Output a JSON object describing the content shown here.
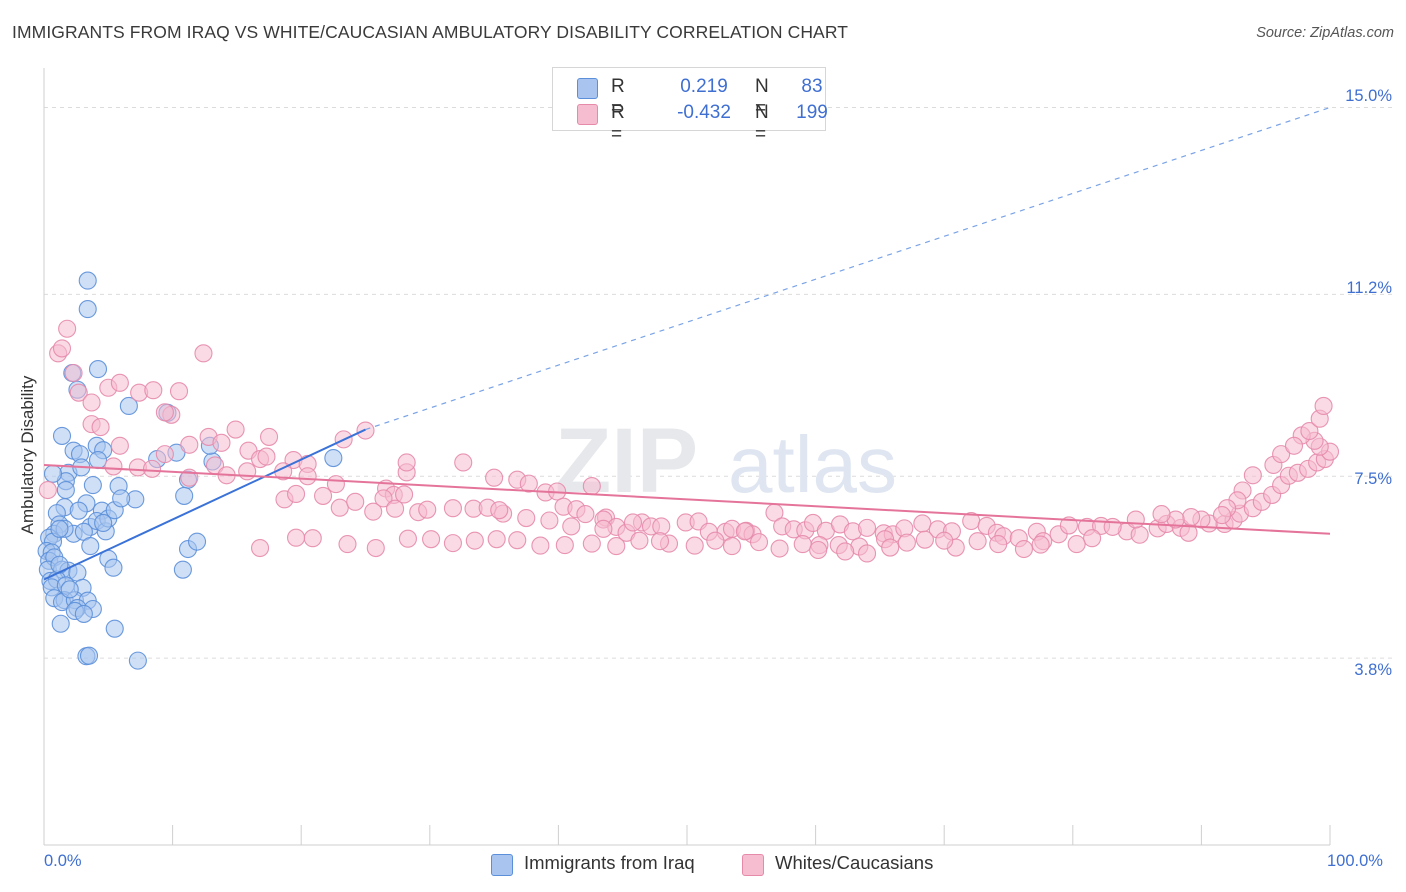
{
  "title": "IMMIGRANTS FROM IRAQ VS WHITE/CAUCASIAN AMBULATORY DISABILITY CORRELATION CHART",
  "source": "Source: ZipAtlas.com",
  "watermark": {
    "part1": "ZIP",
    "part2": "atlas"
  },
  "legend": {
    "rows": [
      {
        "r_label": "R =",
        "r_value": "0.219",
        "n_label": "N =",
        "n_value": "83",
        "color": "#a8c4ef",
        "border": "#5b8fd9"
      },
      {
        "r_label": "R =",
        "r_value": "-0.432",
        "n_label": "N =",
        "n_value": "199",
        "color": "#f6bcd0",
        "border": "#e58aab"
      }
    ]
  },
  "bottom_legend": [
    {
      "label": "Immigrants from Iraq",
      "color": "#a8c4ef",
      "border": "#5b8fd9"
    },
    {
      "label": "Whites/Caucasians",
      "color": "#f6bcd0",
      "border": "#e58aab"
    }
  ],
  "axes": {
    "y_title": "Ambulatory Disability",
    "y_ticks": [
      "15.0%",
      "11.2%",
      "7.5%",
      "3.8%"
    ],
    "x_ticks": [
      "0.0%",
      "100.0%"
    ]
  },
  "chart_data": {
    "type": "scatter",
    "title": "IMMIGRANTS FROM IRAQ VS WHITE/CAUCASIAN AMBULATORY DISABILITY CORRELATION CHART",
    "xlabel": "",
    "ylabel": "Ambulatory Disability",
    "xlim": [
      0,
      100
    ],
    "ylim": [
      0,
      15.6
    ],
    "y_ticks": [
      3.8,
      7.5,
      11.2,
      15.0
    ],
    "grid": true,
    "legend_position": "top-center",
    "series": [
      {
        "name": "Immigrants from Iraq",
        "color": "#5b8fd9",
        "fill": "#a8c4ef",
        "trend": {
          "x": [
            0,
            25
          ],
          "y": [
            5.4,
            8.45
          ],
          "extrapolated_to": [
            100,
            15.0
          ]
        },
        "points": [
          [
            3.4,
            11.48
          ],
          [
            3.4,
            10.9
          ],
          [
            4.2,
            9.68
          ],
          [
            2.2,
            9.6
          ],
          [
            2.6,
            9.26
          ],
          [
            6.6,
            8.93
          ],
          [
            1.4,
            8.32
          ],
          [
            9.6,
            8.79
          ],
          [
            2.3,
            8.02
          ],
          [
            2.8,
            7.95
          ],
          [
            4.1,
            8.12
          ],
          [
            4.6,
            8.03
          ],
          [
            1.9,
            7.57
          ],
          [
            3.8,
            7.32
          ],
          [
            1.7,
            7.4
          ],
          [
            1.7,
            7.22
          ],
          [
            2.9,
            7.68
          ],
          [
            0.7,
            7.55
          ],
          [
            5.8,
            7.3
          ],
          [
            7.1,
            7.03
          ],
          [
            3.3,
            6.95
          ],
          [
            4.5,
            6.8
          ],
          [
            10.3,
            7.98
          ],
          [
            1.6,
            6.87
          ],
          [
            2.7,
            6.8
          ],
          [
            3.6,
            6.47
          ],
          [
            4.1,
            6.59
          ],
          [
            1.0,
            6.75
          ],
          [
            1.2,
            6.52
          ],
          [
            2.3,
            6.33
          ],
          [
            0.8,
            6.33
          ],
          [
            0.4,
            6.25
          ],
          [
            0.7,
            6.17
          ],
          [
            1.6,
            6.43
          ],
          [
            3.1,
            6.37
          ],
          [
            4.8,
            6.38
          ],
          [
            1.2,
            6.43
          ],
          [
            0.2,
            5.98
          ],
          [
            0.6,
            5.95
          ],
          [
            0.4,
            5.78
          ],
          [
            0.8,
            5.85
          ],
          [
            0.3,
            5.6
          ],
          [
            1.4,
            5.6
          ],
          [
            1.9,
            5.58
          ],
          [
            2.6,
            5.54
          ],
          [
            3.6,
            6.08
          ],
          [
            5.0,
            5.82
          ],
          [
            5.4,
            5.64
          ],
          [
            0.5,
            5.37
          ],
          [
            1.0,
            5.4
          ],
          [
            0.6,
            5.24
          ],
          [
            1.7,
            5.28
          ],
          [
            3.0,
            5.23
          ],
          [
            0.8,
            5.02
          ],
          [
            1.6,
            4.98
          ],
          [
            1.4,
            4.94
          ],
          [
            2.4,
            4.98
          ],
          [
            3.4,
            4.97
          ],
          [
            2.6,
            4.82
          ],
          [
            3.8,
            4.8
          ],
          [
            2.4,
            4.76
          ],
          [
            3.1,
            4.7
          ],
          [
            1.3,
            4.5
          ],
          [
            5.5,
            4.4
          ],
          [
            3.3,
            3.84
          ],
          [
            3.5,
            3.85
          ],
          [
            7.3,
            3.75
          ],
          [
            11.2,
            7.43
          ],
          [
            10.9,
            7.1
          ],
          [
            13.1,
            7.8
          ],
          [
            12.9,
            8.12
          ],
          [
            11.2,
            6.02
          ],
          [
            11.9,
            6.17
          ],
          [
            10.8,
            5.6
          ],
          [
            22.5,
            7.87
          ],
          [
            5.0,
            6.64
          ],
          [
            5.5,
            6.81
          ],
          [
            6.0,
            7.05
          ],
          [
            8.8,
            7.85
          ],
          [
            4.2,
            7.83
          ],
          [
            4.6,
            6.55
          ],
          [
            2.0,
            5.2
          ],
          [
            1.2,
            5.7
          ]
        ]
      },
      {
        "name": "Whites/Caucasians",
        "color": "#e58aab",
        "fill": "#f6bcd0",
        "trend": {
          "x": [
            0,
            100
          ],
          "y": [
            7.73,
            6.33
          ]
        },
        "points": [
          [
            1.8,
            10.5
          ],
          [
            1.1,
            10.0
          ],
          [
            1.4,
            10.1
          ],
          [
            12.4,
            10.0
          ],
          [
            2.3,
            9.6
          ],
          [
            2.7,
            9.2
          ],
          [
            3.7,
            9.0
          ],
          [
            5.0,
            9.3
          ],
          [
            5.9,
            9.4
          ],
          [
            7.4,
            9.2
          ],
          [
            8.5,
            9.25
          ],
          [
            10.5,
            9.23
          ],
          [
            9.9,
            8.75
          ],
          [
            9.4,
            8.8
          ],
          [
            3.7,
            8.56
          ],
          [
            4.4,
            8.5
          ],
          [
            14.9,
            8.45
          ],
          [
            12.8,
            8.3
          ],
          [
            17.5,
            8.3
          ],
          [
            23.3,
            8.25
          ],
          [
            25.0,
            8.43
          ],
          [
            5.9,
            8.12
          ],
          [
            11.3,
            8.14
          ],
          [
            13.8,
            8.18
          ],
          [
            9.4,
            7.95
          ],
          [
            15.9,
            8.02
          ],
          [
            16.8,
            7.85
          ],
          [
            17.3,
            7.9
          ],
          [
            19.4,
            7.83
          ],
          [
            20.5,
            7.75
          ],
          [
            5.4,
            7.7
          ],
          [
            7.3,
            7.68
          ],
          [
            8.4,
            7.65
          ],
          [
            13.3,
            7.72
          ],
          [
            15.8,
            7.6
          ],
          [
            18.6,
            7.6
          ],
          [
            20.5,
            7.5
          ],
          [
            22.7,
            7.34
          ],
          [
            28.2,
            7.58
          ],
          [
            28.2,
            7.78
          ],
          [
            32.6,
            7.78
          ],
          [
            35.0,
            7.47
          ],
          [
            36.8,
            7.43
          ],
          [
            37.7,
            7.35
          ],
          [
            39.0,
            7.17
          ],
          [
            39.9,
            7.19
          ],
          [
            42.6,
            7.3
          ],
          [
            26.6,
            7.25
          ],
          [
            27.2,
            7.12
          ],
          [
            21.7,
            7.1
          ],
          [
            0.3,
            7.22
          ],
          [
            11.3,
            7.47
          ],
          [
            14.2,
            7.52
          ],
          [
            18.7,
            7.03
          ],
          [
            19.6,
            7.14
          ],
          [
            23.0,
            6.86
          ],
          [
            24.2,
            6.98
          ],
          [
            25.6,
            6.78
          ],
          [
            26.4,
            7.05
          ],
          [
            27.3,
            6.84
          ],
          [
            29.1,
            6.77
          ],
          [
            29.8,
            6.82
          ],
          [
            28.0,
            7.13
          ],
          [
            31.8,
            6.85
          ],
          [
            33.4,
            6.84
          ],
          [
            34.5,
            6.86
          ],
          [
            35.7,
            6.74
          ],
          [
            35.4,
            6.81
          ],
          [
            37.5,
            6.65
          ],
          [
            39.3,
            6.6
          ],
          [
            40.4,
            6.88
          ],
          [
            41.4,
            6.83
          ],
          [
            42.1,
            6.73
          ],
          [
            43.7,
            6.66
          ],
          [
            43.5,
            6.62
          ],
          [
            44.5,
            6.47
          ],
          [
            45.3,
            6.35
          ],
          [
            46.5,
            6.56
          ],
          [
            47.2,
            6.48
          ],
          [
            48.0,
            6.48
          ],
          [
            49.9,
            6.56
          ],
          [
            50.9,
            6.58
          ],
          [
            51.7,
            6.37
          ],
          [
            53.0,
            6.37
          ],
          [
            53.5,
            6.43
          ],
          [
            54.6,
            6.39
          ],
          [
            55.1,
            6.32
          ],
          [
            56.8,
            6.76
          ],
          [
            57.4,
            6.48
          ],
          [
            58.3,
            6.42
          ],
          [
            59.2,
            6.4
          ],
          [
            59.8,
            6.55
          ],
          [
            60.8,
            6.39
          ],
          [
            61.9,
            6.52
          ],
          [
            62.9,
            6.38
          ],
          [
            64.0,
            6.45
          ],
          [
            65.3,
            6.34
          ],
          [
            66.0,
            6.32
          ],
          [
            66.9,
            6.44
          ],
          [
            68.3,
            6.54
          ],
          [
            69.5,
            6.42
          ],
          [
            70.6,
            6.38
          ],
          [
            72.1,
            6.59
          ],
          [
            73.3,
            6.49
          ],
          [
            74.1,
            6.35
          ],
          [
            74.6,
            6.28
          ],
          [
            75.8,
            6.24
          ],
          [
            77.2,
            6.37
          ],
          [
            78.9,
            6.32
          ],
          [
            79.7,
            6.5
          ],
          [
            81.1,
            6.47
          ],
          [
            82.2,
            6.49
          ],
          [
            84.2,
            6.38
          ],
          [
            85.2,
            6.31
          ],
          [
            86.6,
            6.44
          ],
          [
            87.3,
            6.53
          ],
          [
            88.4,
            6.45
          ],
          [
            89.0,
            6.35
          ],
          [
            90.6,
            6.54
          ],
          [
            91.8,
            6.53
          ],
          [
            92.5,
            6.61
          ],
          [
            93.0,
            6.74
          ],
          [
            94.0,
            6.85
          ],
          [
            94.7,
            6.98
          ],
          [
            95.5,
            7.12
          ],
          [
            96.2,
            7.32
          ],
          [
            96.8,
            7.51
          ],
          [
            97.5,
            7.57
          ],
          [
            98.3,
            7.65
          ],
          [
            99.0,
            7.78
          ],
          [
            99.6,
            7.85
          ],
          [
            100.0,
            8.0
          ],
          [
            99.2,
            8.1
          ],
          [
            98.8,
            8.22
          ],
          [
            97.8,
            8.33
          ],
          [
            98.4,
            8.42
          ],
          [
            99.2,
            8.67
          ],
          [
            99.5,
            8.93
          ],
          [
            95.6,
            7.73
          ],
          [
            96.2,
            7.95
          ],
          [
            97.2,
            8.12
          ],
          [
            94.0,
            7.52
          ],
          [
            93.2,
            7.21
          ],
          [
            92.8,
            7.01
          ],
          [
            92.0,
            6.85
          ],
          [
            91.6,
            6.71
          ],
          [
            90.0,
            6.62
          ],
          [
            89.2,
            6.67
          ],
          [
            88.0,
            6.62
          ],
          [
            86.9,
            6.73
          ],
          [
            84.9,
            6.62
          ],
          [
            83.1,
            6.47
          ],
          [
            81.5,
            6.24
          ],
          [
            80.3,
            6.12
          ],
          [
            77.7,
            6.18
          ],
          [
            77.5,
            6.11
          ],
          [
            76.2,
            6.02
          ],
          [
            74.2,
            6.12
          ],
          [
            72.6,
            6.18
          ],
          [
            70.9,
            6.05
          ],
          [
            70.0,
            6.19
          ],
          [
            68.5,
            6.21
          ],
          [
            67.1,
            6.15
          ],
          [
            65.4,
            6.22
          ],
          [
            63.4,
            6.07
          ],
          [
            61.8,
            6.1
          ],
          [
            60.3,
            6.1
          ],
          [
            59.0,
            6.12
          ],
          [
            57.2,
            6.03
          ],
          [
            55.6,
            6.16
          ],
          [
            53.5,
            6.08
          ],
          [
            52.2,
            6.19
          ],
          [
            50.6,
            6.09
          ],
          [
            48.6,
            6.13
          ],
          [
            46.3,
            6.19
          ],
          [
            44.5,
            6.08
          ],
          [
            42.6,
            6.13
          ],
          [
            40.5,
            6.1
          ],
          [
            38.6,
            6.09
          ],
          [
            36.8,
            6.2
          ],
          [
            35.2,
            6.22
          ],
          [
            33.5,
            6.19
          ],
          [
            31.8,
            6.14
          ],
          [
            30.1,
            6.22
          ],
          [
            28.3,
            6.23
          ],
          [
            25.8,
            6.04
          ],
          [
            23.6,
            6.12
          ],
          [
            20.9,
            6.24
          ],
          [
            19.6,
            6.25
          ],
          [
            16.8,
            6.04
          ],
          [
            62.3,
            5.97
          ],
          [
            64.0,
            5.93
          ],
          [
            65.8,
            6.05
          ],
          [
            60.2,
            6.0
          ],
          [
            54.5,
            6.38
          ],
          [
            47.9,
            6.18
          ],
          [
            45.8,
            6.56
          ],
          [
            43.5,
            6.43
          ],
          [
            41.0,
            6.48
          ]
        ]
      }
    ]
  }
}
